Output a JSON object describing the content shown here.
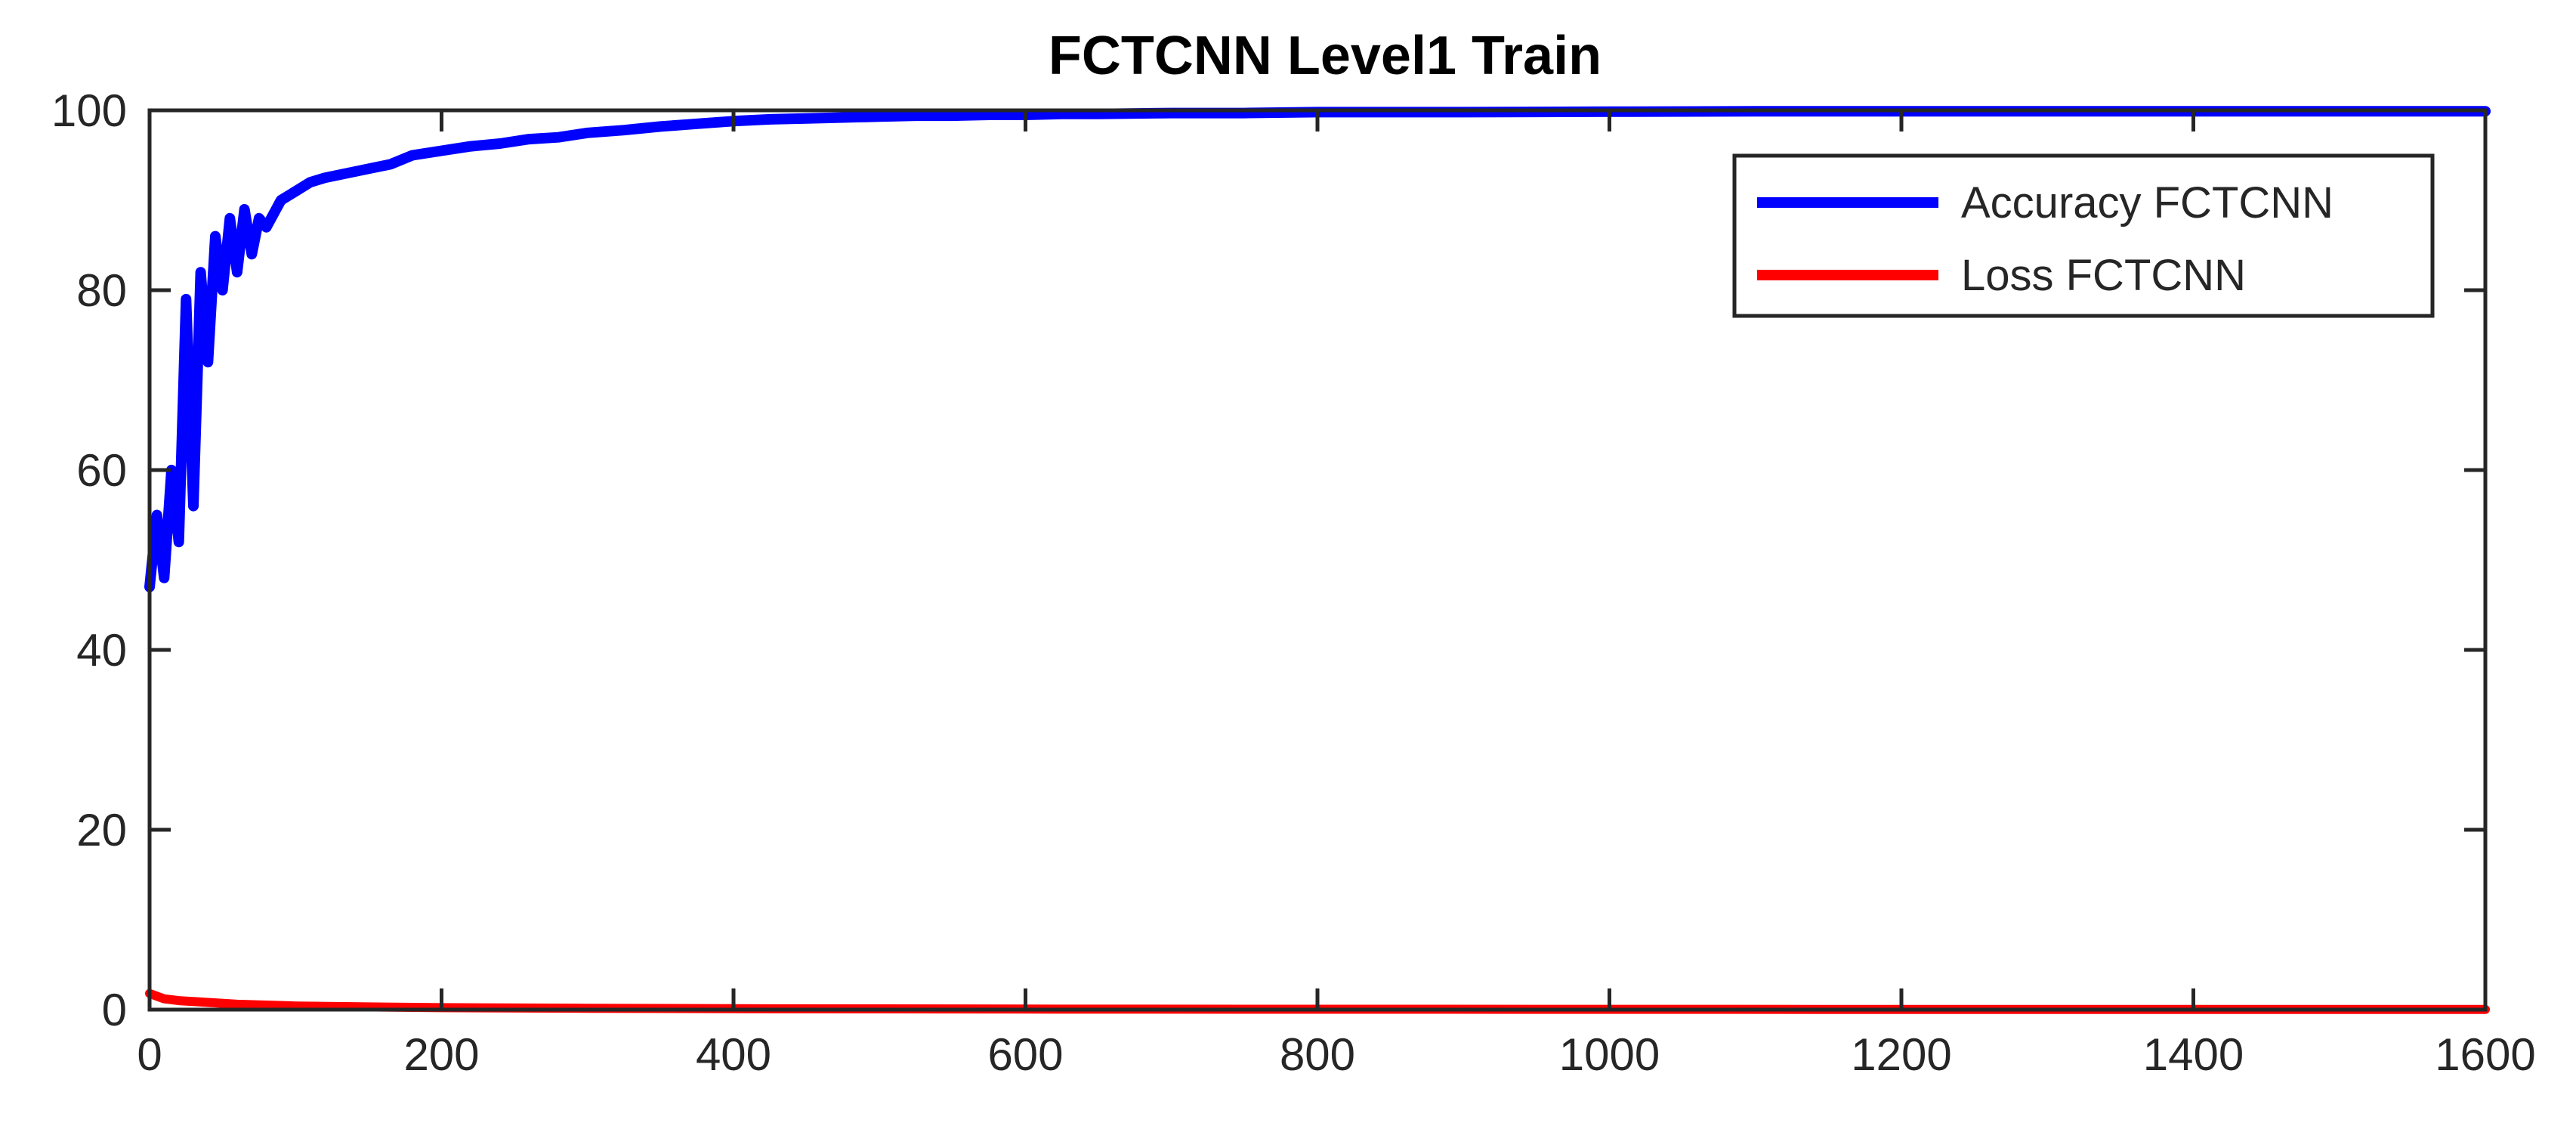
{
  "chart_data": {
    "type": "line",
    "title": "FCTCNN Level1 Train",
    "xlabel": "",
    "ylabel": "",
    "xlim": [
      0,
      1600
    ],
    "ylim": [
      0,
      100
    ],
    "x_ticks": [
      "0",
      "200",
      "400",
      "600",
      "800",
      "1000",
      "1200",
      "1400",
      "1600"
    ],
    "y_ticks": [
      "0",
      "20",
      "40",
      "60",
      "80",
      "100"
    ],
    "grid": false,
    "legend_position": "top-right",
    "series": [
      {
        "name": "Accuracy FCTCNN",
        "color": "#0000ff",
        "x": [
          0,
          5,
          10,
          15,
          20,
          25,
          30,
          35,
          40,
          45,
          50,
          55,
          60,
          65,
          70,
          75,
          80,
          90,
          100,
          110,
          120,
          135,
          150,
          165,
          180,
          200,
          220,
          240,
          260,
          280,
          300,
          325,
          350,
          375,
          400,
          425,
          450,
          475,
          500,
          525,
          550,
          575,
          600,
          625,
          650,
          700,
          750,
          800,
          900,
          1000,
          1100,
          1200,
          1300,
          1400,
          1500,
          1600
        ],
        "values": [
          47,
          55,
          48,
          60,
          52,
          79,
          56,
          82,
          72,
          86,
          80,
          88,
          82,
          89,
          84,
          88,
          87,
          90,
          91,
          92,
          92.5,
          93,
          93.5,
          94,
          95,
          95.5,
          96,
          96.3,
          96.8,
          97,
          97.5,
          97.8,
          98.2,
          98.5,
          98.8,
          99,
          99.1,
          99.2,
          99.3,
          99.4,
          99.4,
          99.5,
          99.5,
          99.6,
          99.6,
          99.7,
          99.7,
          99.8,
          99.8,
          99.85,
          99.9,
          99.9,
          99.9,
          99.9,
          99.9,
          99.9
        ]
      },
      {
        "name": "Loss FCTCNN",
        "color": "#ff0000",
        "x": [
          0,
          5,
          10,
          20,
          40,
          60,
          80,
          100,
          150,
          200,
          300,
          400,
          500,
          600,
          800,
          1000,
          1200,
          1400,
          1600
        ],
        "values": [
          1.8,
          1.5,
          1.2,
          1.0,
          0.8,
          0.6,
          0.5,
          0.4,
          0.3,
          0.22,
          0.15,
          0.1,
          0.08,
          0.06,
          0.04,
          0.03,
          0.02,
          0.02,
          0.02
        ]
      }
    ]
  }
}
